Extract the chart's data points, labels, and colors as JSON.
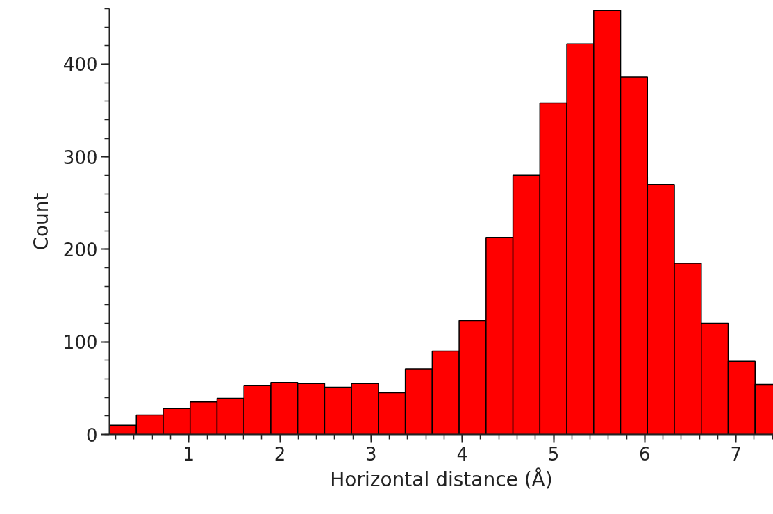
{
  "chart_data": {
    "type": "histogram",
    "xlabel": "Horizontal distance (Å)",
    "ylabel": "Count",
    "bins": [
      0.13,
      0.425,
      0.72,
      1.015,
      1.31,
      1.605,
      1.9,
      2.195,
      2.49,
      2.785,
      3.08,
      3.375,
      3.67,
      3.965,
      4.26,
      4.555,
      4.85,
      5.145,
      5.44,
      5.735,
      6.03,
      6.325,
      6.62,
      6.915,
      7.21,
      7.505
    ],
    "values": [
      10,
      21,
      28,
      35,
      39,
      53,
      56,
      55,
      51,
      55,
      45,
      71,
      90,
      123,
      213,
      280,
      358,
      422,
      458,
      386,
      270,
      185,
      120,
      79,
      54
    ],
    "color": "#ff0000",
    "xlim": [
      0.13,
      7.41
    ],
    "ylim": [
      0,
      460
    ],
    "xticks": [
      1,
      2,
      3,
      4,
      5,
      6,
      7
    ],
    "yticks": [
      0,
      100,
      200,
      300,
      400
    ],
    "grid": false
  }
}
